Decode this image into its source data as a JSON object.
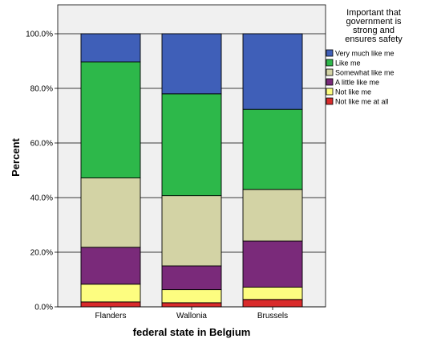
{
  "chart_data": {
    "type": "bar",
    "stacked": true,
    "percent": true,
    "xlabel": "federal state in Belgium",
    "ylabel": "Percent",
    "ylim": [
      0,
      100
    ],
    "yticks": [
      "0.0%",
      "20.0%",
      "40.0%",
      "60.0%",
      "80.0%",
      "100.0%"
    ],
    "grid": "horizontal",
    "legend_placement": "right",
    "categories": [
      "Flanders",
      "Wallonia",
      "Brussels"
    ],
    "legend_title": [
      "Important that",
      "government is",
      "strong and",
      "ensures safety"
    ],
    "series": [
      {
        "name": "Not like me at all",
        "color": "#d92b2b",
        "values": [
          1.8,
          1.5,
          2.7
        ]
      },
      {
        "name": "Not like me",
        "color": "#fdfd80",
        "values": [
          6.5,
          4.8,
          4.5
        ]
      },
      {
        "name": "A little like me",
        "color": "#7a2a7a",
        "values": [
          13.5,
          8.7,
          16.9
        ]
      },
      {
        "name": "Somewhat like me",
        "color": "#d3d3a5",
        "values": [
          25.4,
          25.7,
          18.9
        ]
      },
      {
        "name": "Like me",
        "color": "#2db84a",
        "values": [
          42.5,
          37.3,
          29.3
        ]
      },
      {
        "name": "Very much like me",
        "color": "#3f5fb8",
        "values": [
          10.3,
          22.0,
          27.7
        ]
      }
    ],
    "legend_order": [
      "Very much like me",
      "Like me",
      "Somewhat like me",
      "A little like me",
      "Not like me",
      "Not like me at all"
    ]
  },
  "colors": {
    "plot_background": "#f0f0f0",
    "page_background": "#ffffff",
    "grid": "#000000"
  }
}
